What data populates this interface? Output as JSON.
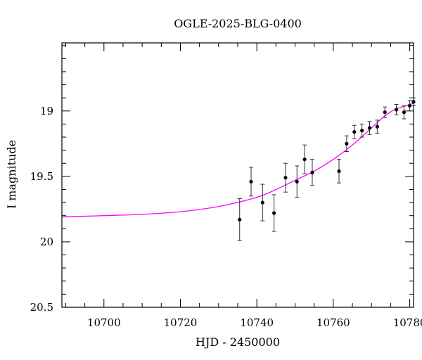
{
  "chart_data": {
    "type": "scatter",
    "title": "OGLE-2025-BLG-0400",
    "xlabel": "HJD - 2450000",
    "ylabel": "I magnitude",
    "xlim": [
      10689,
      10781
    ],
    "ylim": [
      20.5,
      18.48
    ],
    "y_inverted": true,
    "x_ticks": [
      10700,
      10720,
      10740,
      10760,
      10780
    ],
    "y_ticks": [
      19,
      19.5,
      20,
      20.5
    ],
    "x_tick_labels": [
      "10700",
      "10720",
      "10740",
      "10760",
      "10780"
    ],
    "y_tick_labels": [
      "19",
      "19.5",
      "20",
      "20.5"
    ],
    "x_minor_step": 5,
    "y_minor_step": 0.1,
    "grid": false,
    "model_color": "#ff00ff",
    "point_color": "#000000",
    "observations": {
      "x": [
        10735.5,
        10738.5,
        10741.5,
        10744.5,
        10747.5,
        10750.5,
        10752.5,
        10754.5,
        10761.5,
        10763.5,
        10765.5,
        10767.5,
        10769.5,
        10771.5,
        10773.5,
        10776.5,
        10778.5,
        10780.0,
        10781.0
      ],
      "y": [
        19.83,
        19.54,
        19.7,
        19.78,
        19.51,
        19.54,
        19.37,
        19.47,
        19.46,
        19.25,
        19.16,
        19.15,
        19.13,
        19.12,
        19.01,
        18.99,
        19.01,
        18.96,
        18.93
      ],
      "err": [
        0.16,
        0.11,
        0.14,
        0.14,
        0.11,
        0.12,
        0.11,
        0.1,
        0.09,
        0.06,
        0.05,
        0.05,
        0.05,
        0.05,
        0.04,
        0.04,
        0.05,
        0.04,
        0.03
      ]
    },
    "model": {
      "name": "",
      "x": [
        10689,
        10700,
        10710,
        10720,
        10730,
        10740,
        10745,
        10750,
        10755,
        10760,
        10765,
        10770,
        10773,
        10776,
        10779,
        10781
      ],
      "y": [
        19.81,
        19.8,
        19.79,
        19.77,
        19.73,
        19.66,
        19.6,
        19.53,
        19.46,
        19.37,
        19.26,
        19.13,
        19.05,
        18.99,
        18.96,
        18.94
      ]
    }
  }
}
